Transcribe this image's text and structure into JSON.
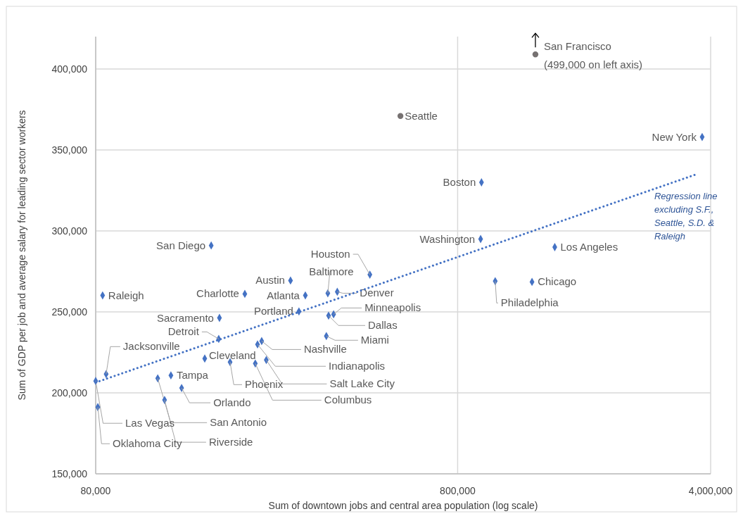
{
  "chart_data": {
    "type": "scatter",
    "xlabel": "Sum of downtown jobs and central area population (log scale)",
    "ylabel": "Sum of GDP per job and average salary for leading sector workers",
    "log": "x",
    "grid": true,
    "xlim": [
      80000,
      4000000
    ],
    "xticks": [
      {
        "value": 80000,
        "label": "80,000"
      },
      {
        "value": 800000,
        "label": "800,000"
      },
      {
        "value": 4000000,
        "label": "4,000,000"
      }
    ],
    "ylim": [
      150000,
      420000
    ],
    "yticks": [
      {
        "value": 150000,
        "label": "150,000"
      },
      {
        "value": 200000,
        "label": "200,000"
      },
      {
        "value": 250000,
        "label": "250,000"
      },
      {
        "value": 300000,
        "label": "300,000"
      },
      {
        "value": 350000,
        "label": "350,000"
      },
      {
        "value": 400000,
        "label": "400,000"
      }
    ],
    "series": [
      {
        "name": "San Francisco",
        "color": "#767171",
        "marker": "circle",
        "x": [
          1312000
        ],
        "values": [
          409000
        ]
      },
      {
        "name": "Seattle",
        "color": "#767171",
        "marker": "circle",
        "x": [
          556000
        ],
        "values": [
          371000
        ]
      },
      {
        "name": "New York",
        "color": "#4472c4",
        "marker": "diamond",
        "x": [
          3790000
        ],
        "values": [
          358000
        ]
      },
      {
        "name": "Boston",
        "color": "#4472c4",
        "marker": "diamond",
        "x": [
          931000
        ],
        "values": [
          330000
        ]
      },
      {
        "name": "Washington",
        "color": "#4472c4",
        "marker": "diamond",
        "x": [
          926000
        ],
        "values": [
          295000
        ]
      },
      {
        "name": "Los Angeles",
        "color": "#4472c4",
        "marker": "diamond",
        "x": [
          1484000
        ],
        "values": [
          290000
        ]
      },
      {
        "name": "Chicago",
        "color": "#4472c4",
        "marker": "diamond",
        "x": [
          1284000
        ],
        "values": [
          268500
        ]
      },
      {
        "name": "Philadelphia",
        "color": "#4472c4",
        "marker": "diamond",
        "x": [
          1016000
        ],
        "values": [
          269000
        ]
      },
      {
        "name": "San Diego",
        "color": "#4472c4",
        "marker": "diamond",
        "x": [
          166800
        ],
        "values": [
          291000
        ]
      },
      {
        "name": "Houston",
        "color": "#4472c4",
        "marker": "diamond",
        "x": [
          457700
        ],
        "values": [
          273000
        ]
      },
      {
        "name": "Baltimore",
        "color": "#4472c4",
        "marker": "diamond",
        "x": [
          350300
        ],
        "values": [
          261500
        ]
      },
      {
        "name": "Denver",
        "color": "#4472c4",
        "marker": "diamond",
        "x": [
          372000
        ],
        "values": [
          262400
        ]
      },
      {
        "name": "Austin",
        "color": "#4472c4",
        "marker": "diamond",
        "x": [
          276300
        ],
        "values": [
          269400
        ]
      },
      {
        "name": "Charlotte",
        "color": "#4472c4",
        "marker": "diamond",
        "x": [
          206600
        ],
        "values": [
          261100
        ]
      },
      {
        "name": "Atlanta",
        "color": "#4472c4",
        "marker": "diamond",
        "x": [
          303600
        ],
        "values": [
          260200
        ]
      },
      {
        "name": "Portland",
        "color": "#4472c4",
        "marker": "diamond",
        "x": [
          291500
        ],
        "values": [
          250300
        ]
      },
      {
        "name": "Minneapolis",
        "color": "#4472c4",
        "marker": "diamond",
        "x": [
          363400
        ],
        "values": [
          248500
        ]
      },
      {
        "name": "Dallas",
        "color": "#4472c4",
        "marker": "diamond",
        "x": [
          352000
        ],
        "values": [
          247700
        ]
      },
      {
        "name": "Miami",
        "color": "#4472c4",
        "marker": "diamond",
        "x": [
          347000
        ],
        "values": [
          235100
        ]
      },
      {
        "name": "Sacramento",
        "color": "#4472c4",
        "marker": "diamond",
        "x": [
          175800
        ],
        "values": [
          246300
        ]
      },
      {
        "name": "Detroit",
        "color": "#4472c4",
        "marker": "diamond",
        "x": [
          175000
        ],
        "values": [
          233300
        ]
      },
      {
        "name": "Jacksonville",
        "color": "#4472c4",
        "marker": "diamond",
        "x": [
          85500
        ],
        "values": [
          211600
        ]
      },
      {
        "name": "Nashville",
        "color": "#4472c4",
        "marker": "diamond",
        "x": [
          230000
        ],
        "values": [
          232000
        ]
      },
      {
        "name": "Indianapolis",
        "color": "#4472c4",
        "marker": "diamond",
        "x": [
          224000
        ],
        "values": [
          229900
        ]
      },
      {
        "name": "Salt Lake City",
        "color": "#4472c4",
        "marker": "diamond",
        "x": [
          236800
        ],
        "values": [
          220300
        ]
      },
      {
        "name": "Columbus",
        "color": "#4472c4",
        "marker": "diamond",
        "x": [
          220800
        ],
        "values": [
          218100
        ]
      },
      {
        "name": "Cleveland",
        "color": "#4472c4",
        "marker": "diamond",
        "x": [
          160100
        ],
        "values": [
          221200
        ]
      },
      {
        "name": "Phoenix",
        "color": "#4472c4",
        "marker": "diamond",
        "x": [
          188100
        ],
        "values": [
          219000
        ]
      },
      {
        "name": "Tampa",
        "color": "#4472c4",
        "marker": "diamond",
        "x": [
          129100
        ],
        "values": [
          210800
        ]
      },
      {
        "name": "Orlando",
        "color": "#4472c4",
        "marker": "diamond",
        "x": [
          138200
        ],
        "values": [
          203000
        ]
      },
      {
        "name": "San Antonio",
        "color": "#4472c4",
        "marker": "diamond",
        "x": [
          118700
        ],
        "values": [
          209000
        ]
      },
      {
        "name": "Riverside",
        "color": "#4472c4",
        "marker": "diamond",
        "x": [
          124000
        ],
        "values": [
          195600
        ]
      },
      {
        "name": "Las Vegas",
        "color": "#4472c4",
        "marker": "diamond",
        "x": [
          80000
        ],
        "values": [
          207300
        ]
      },
      {
        "name": "Oklahoma City",
        "color": "#4472c4",
        "marker": "diamond",
        "x": [
          81100
        ],
        "values": [
          191200
        ]
      },
      {
        "name": "Raleigh",
        "color": "#4472c4",
        "marker": "diamond",
        "x": [
          83600
        ],
        "values": [
          260200
        ]
      },
      {
        "type": "line",
        "color": "#4472c4",
        "marker": "none",
        "line_style": "dotted",
        "x": [
          80000,
          3690000
        ],
        "values": [
          206400,
          335300
        ]
      }
    ],
    "annotations": [
      {
        "text": "(499,000 on left axis)",
        "x": 1312000,
        "y": 409000
      },
      {
        "text": "Regression line excluding S.F., Seattle, S.D. & Raleigh",
        "x": 3690000,
        "y": 335300
      }
    ]
  }
}
